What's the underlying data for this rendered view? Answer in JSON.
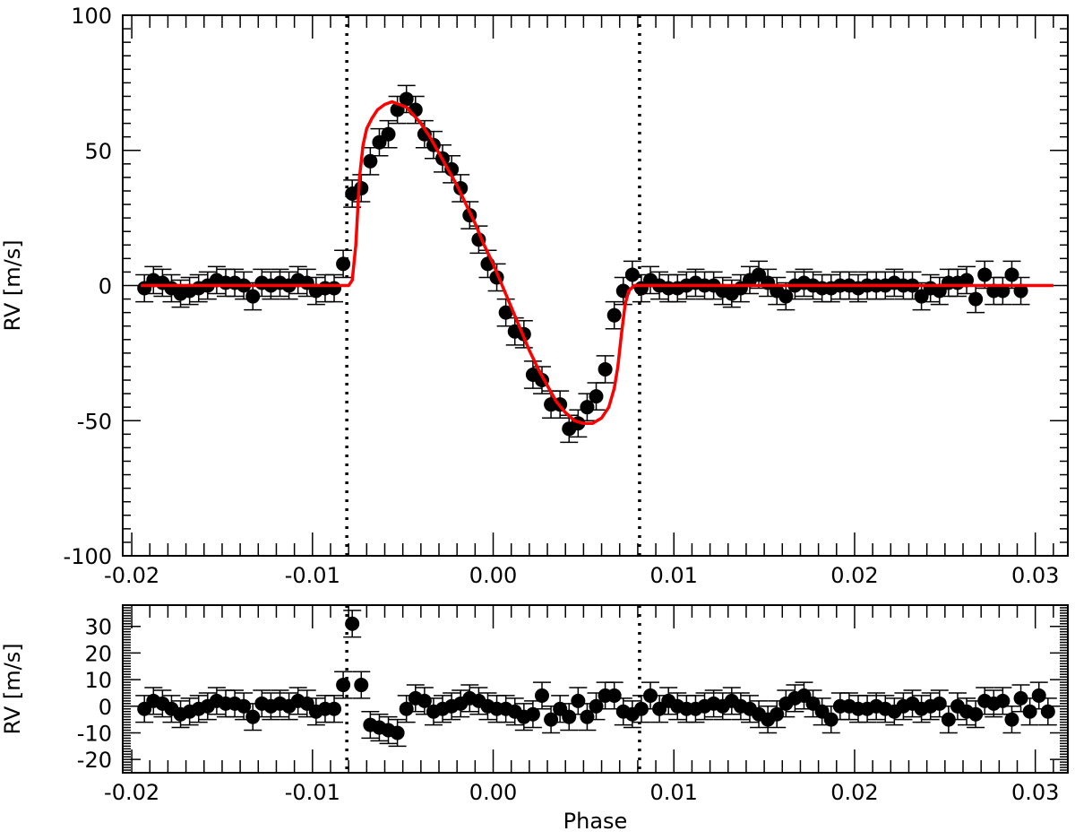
{
  "chart_data": [
    {
      "type": "scatter",
      "xlabel": "",
      "ylabel": "RV [m/s]",
      "xlim": [
        -0.0205,
        0.0318
      ],
      "ylim": [
        -100,
        100
      ],
      "xticks": [
        -0.02,
        -0.01,
        0.0,
        0.01,
        0.02,
        0.03
      ],
      "xtick_labels": [
        "-0.02",
        "-0.01",
        "0.00",
        "0.01",
        "0.02",
        "0.03"
      ],
      "yticks": [
        -100,
        -50,
        0,
        50,
        100
      ],
      "ytick_labels": [
        "-100",
        "-50",
        "0",
        "50",
        "100"
      ],
      "vlines": [
        -0.0081,
        0.0081
      ],
      "grid": false,
      "series": [
        {
          "marker": "filled-circle",
          "color": "#000000",
          "errorbar": 5,
          "points": [
            [
              -0.0193,
              -1
            ],
            [
              -0.0188,
              2
            ],
            [
              -0.0183,
              1
            ],
            [
              -0.0178,
              -1
            ],
            [
              -0.0173,
              -3
            ],
            [
              -0.0168,
              -2
            ],
            [
              -0.0163,
              -1
            ],
            [
              -0.0158,
              0
            ],
            [
              -0.0153,
              2
            ],
            [
              -0.0148,
              1
            ],
            [
              -0.0143,
              1
            ],
            [
              -0.0138,
              0
            ],
            [
              -0.0133,
              -4
            ],
            [
              -0.0128,
              1
            ],
            [
              -0.0123,
              0
            ],
            [
              -0.0118,
              1
            ],
            [
              -0.0113,
              0
            ],
            [
              -0.0108,
              2
            ],
            [
              -0.0103,
              1
            ],
            [
              -0.0098,
              -2
            ],
            [
              -0.0093,
              -1
            ],
            [
              -0.0088,
              -1
            ],
            [
              -0.0083,
              8
            ],
            [
              -0.0078,
              34
            ],
            [
              -0.0073,
              36
            ],
            [
              -0.0068,
              46
            ],
            [
              -0.0063,
              53
            ],
            [
              -0.0058,
              56
            ],
            [
              -0.0053,
              65
            ],
            [
              -0.0048,
              69
            ],
            [
              -0.0043,
              65
            ],
            [
              -0.0038,
              56
            ],
            [
              -0.0033,
              52
            ],
            [
              -0.0028,
              47
            ],
            [
              -0.0023,
              43
            ],
            [
              -0.0018,
              36
            ],
            [
              -0.0013,
              26
            ],
            [
              -0.0008,
              17
            ],
            [
              -0.0003,
              8
            ],
            [
              0.0002,
              3
            ],
            [
              0.0007,
              -10
            ],
            [
              0.0012,
              -17
            ],
            [
              0.0017,
              -18
            ],
            [
              0.0022,
              -33
            ],
            [
              0.0027,
              -35
            ],
            [
              0.0032,
              -44
            ],
            [
              0.0037,
              -44
            ],
            [
              0.0042,
              -53
            ],
            [
              0.0047,
              -51
            ],
            [
              0.0052,
              -45
            ],
            [
              0.0057,
              -41
            ],
            [
              0.0062,
              -31
            ],
            [
              0.0067,
              -11
            ],
            [
              0.0072,
              -2
            ],
            [
              0.0077,
              4
            ],
            [
              0.0082,
              -1
            ],
            [
              0.0087,
              2
            ],
            [
              0.0092,
              0
            ],
            [
              0.0097,
              -1
            ],
            [
              0.0102,
              -1
            ],
            [
              0.0107,
              0
            ],
            [
              0.0112,
              1
            ],
            [
              0.0117,
              0
            ],
            [
              0.0122,
              0
            ],
            [
              0.0127,
              -2
            ],
            [
              0.0132,
              -3
            ],
            [
              0.0137,
              -1
            ],
            [
              0.0142,
              2
            ],
            [
              0.0147,
              4
            ],
            [
              0.0152,
              1
            ],
            [
              0.0157,
              -2
            ],
            [
              0.0162,
              -4
            ],
            [
              0.0167,
              0
            ],
            [
              0.0172,
              1
            ],
            [
              0.0177,
              0
            ],
            [
              0.0182,
              -1
            ],
            [
              0.0187,
              -1
            ],
            [
              0.0192,
              0
            ],
            [
              0.0197,
              0
            ],
            [
              0.0202,
              -1
            ],
            [
              0.0207,
              0
            ],
            [
              0.0212,
              0
            ],
            [
              0.0217,
              0
            ],
            [
              0.0222,
              1
            ],
            [
              0.0227,
              0
            ],
            [
              0.0232,
              0
            ],
            [
              0.0237,
              -4
            ],
            [
              0.0242,
              -1
            ],
            [
              0.0247,
              -2
            ],
            [
              0.0252,
              1
            ],
            [
              0.0257,
              1
            ],
            [
              0.0262,
              2
            ],
            [
              0.0267,
              -5
            ],
            [
              0.0272,
              4
            ],
            [
              0.0277,
              -2
            ],
            [
              0.0282,
              -2
            ],
            [
              0.0287,
              4
            ],
            [
              0.0292,
              -2
            ]
          ]
        },
        {
          "type": "line",
          "color": "#ff0000",
          "points": [
            [
              -0.0195,
              0
            ],
            [
              -0.008,
              0
            ],
            [
              -0.0078,
              2
            ],
            [
              -0.0076,
              15
            ],
            [
              -0.0074,
              40
            ],
            [
              -0.0072,
              52
            ],
            [
              -0.007,
              58
            ],
            [
              -0.0067,
              62
            ],
            [
              -0.0064,
              65
            ],
            [
              -0.006,
              67
            ],
            [
              -0.0056,
              68
            ],
            [
              -0.0052,
              67
            ],
            [
              -0.0048,
              66
            ],
            [
              -0.0044,
              63
            ],
            [
              -0.004,
              60
            ],
            [
              -0.0035,
              55
            ],
            [
              -0.003,
              49
            ],
            [
              -0.0025,
              43
            ],
            [
              -0.002,
              37
            ],
            [
              -0.0015,
              30
            ],
            [
              -0.001,
              23
            ],
            [
              -0.0005,
              15
            ],
            [
              0.0,
              8
            ],
            [
              0.0005,
              0
            ],
            [
              0.001,
              -8
            ],
            [
              0.0015,
              -16
            ],
            [
              0.002,
              -24
            ],
            [
              0.0025,
              -31
            ],
            [
              0.003,
              -37
            ],
            [
              0.0035,
              -43
            ],
            [
              0.004,
              -47
            ],
            [
              0.0045,
              -50
            ],
            [
              0.005,
              -51
            ],
            [
              0.0055,
              -51
            ],
            [
              0.006,
              -49
            ],
            [
              0.0064,
              -45
            ],
            [
              0.0067,
              -38
            ],
            [
              0.0069,
              -30
            ],
            [
              0.0071,
              -18
            ],
            [
              0.0073,
              -7
            ],
            [
              0.0075,
              -2
            ],
            [
              0.0078,
              0
            ],
            [
              0.031,
              0
            ]
          ]
        }
      ]
    },
    {
      "type": "scatter",
      "xlabel": "Phase",
      "ylabel": "RV [m/s]",
      "xlim": [
        -0.0205,
        0.0318
      ],
      "ylim": [
        -25,
        38
      ],
      "xticks": [
        -0.02,
        -0.01,
        0.0,
        0.01,
        0.02,
        0.03
      ],
      "xtick_labels": [
        "-0.02",
        "-0.01",
        "0.00",
        "0.01",
        "0.02",
        "0.03"
      ],
      "yticks": [
        -20,
        -10,
        0,
        10,
        20,
        30
      ],
      "ytick_labels": [
        "-20",
        "-10",
        "0",
        "10",
        "20",
        "30"
      ],
      "vlines": [
        -0.0081,
        0.0081
      ],
      "grid": false,
      "series": [
        {
          "marker": "filled-circle",
          "color": "#000000",
          "errorbar": 5,
          "points": [
            [
              -0.0193,
              -1
            ],
            [
              -0.0188,
              2
            ],
            [
              -0.0183,
              1
            ],
            [
              -0.0178,
              -1
            ],
            [
              -0.0173,
              -3
            ],
            [
              -0.0168,
              -2
            ],
            [
              -0.0163,
              -1
            ],
            [
              -0.0158,
              0
            ],
            [
              -0.0153,
              2
            ],
            [
              -0.0148,
              1
            ],
            [
              -0.0143,
              1
            ],
            [
              -0.0138,
              0
            ],
            [
              -0.0133,
              -4
            ],
            [
              -0.0128,
              1
            ],
            [
              -0.0123,
              0
            ],
            [
              -0.0118,
              1
            ],
            [
              -0.0113,
              0
            ],
            [
              -0.0108,
              2
            ],
            [
              -0.0103,
              1
            ],
            [
              -0.0098,
              -2
            ],
            [
              -0.0093,
              -1
            ],
            [
              -0.0088,
              -1
            ],
            [
              -0.0083,
              8
            ],
            [
              -0.0078,
              31
            ],
            [
              -0.0073,
              8
            ],
            [
              -0.0068,
              -7
            ],
            [
              -0.0063,
              -8
            ],
            [
              -0.0058,
              -9
            ],
            [
              -0.0053,
              -10
            ],
            [
              -0.0048,
              -1
            ],
            [
              -0.0043,
              3
            ],
            [
              -0.0038,
              2
            ],
            [
              -0.0033,
              -2
            ],
            [
              -0.0028,
              -1
            ],
            [
              -0.0023,
              0
            ],
            [
              -0.0018,
              1
            ],
            [
              -0.0013,
              3
            ],
            [
              -0.0008,
              2
            ],
            [
              -0.0003,
              0
            ],
            [
              0.0002,
              -1
            ],
            [
              0.0007,
              -1
            ],
            [
              0.0012,
              -2
            ],
            [
              0.0017,
              -4
            ],
            [
              0.0022,
              -3
            ],
            [
              0.0027,
              4
            ],
            [
              0.0032,
              -5
            ],
            [
              0.0037,
              -1
            ],
            [
              0.0042,
              -4
            ],
            [
              0.0047,
              2
            ],
            [
              0.0052,
              -4
            ],
            [
              0.0057,
              0
            ],
            [
              0.0062,
              4
            ],
            [
              0.0067,
              4
            ],
            [
              0.0072,
              -2
            ],
            [
              0.0077,
              -3
            ],
            [
              0.0082,
              -1
            ],
            [
              0.0087,
              4
            ],
            [
              0.0092,
              -1
            ],
            [
              0.0097,
              2
            ],
            [
              0.0102,
              0
            ],
            [
              0.0107,
              -1
            ],
            [
              0.0112,
              -1
            ],
            [
              0.0117,
              0
            ],
            [
              0.0122,
              1
            ],
            [
              0.0127,
              0
            ],
            [
              0.0132,
              2
            ],
            [
              0.0137,
              0
            ],
            [
              0.0142,
              -1
            ],
            [
              0.0147,
              -3
            ],
            [
              0.0152,
              -5
            ],
            [
              0.0157,
              -3
            ],
            [
              0.0162,
              1
            ],
            [
              0.0167,
              3
            ],
            [
              0.0172,
              4
            ],
            [
              0.0177,
              1
            ],
            [
              0.0182,
              -2
            ],
            [
              0.0187,
              -5
            ],
            [
              0.0192,
              0
            ],
            [
              0.0197,
              0
            ],
            [
              0.0202,
              -1
            ],
            [
              0.0207,
              -1
            ],
            [
              0.0212,
              0
            ],
            [
              0.0217,
              -1
            ],
            [
              0.0222,
              -2
            ],
            [
              0.0227,
              0
            ],
            [
              0.0232,
              1
            ],
            [
              0.0237,
              -1
            ],
            [
              0.0242,
              0
            ],
            [
              0.0247,
              1
            ],
            [
              0.0252,
              -5
            ],
            [
              0.0257,
              0
            ],
            [
              0.0262,
              -2
            ],
            [
              0.0267,
              -3
            ],
            [
              0.0272,
              2
            ],
            [
              0.0277,
              1
            ],
            [
              0.0282,
              2
            ],
            [
              0.0287,
              -5
            ],
            [
              0.0292,
              3
            ],
            [
              0.0297,
              -2
            ],
            [
              0.0302,
              4
            ],
            [
              0.0307,
              -2
            ]
          ]
        }
      ]
    }
  ]
}
